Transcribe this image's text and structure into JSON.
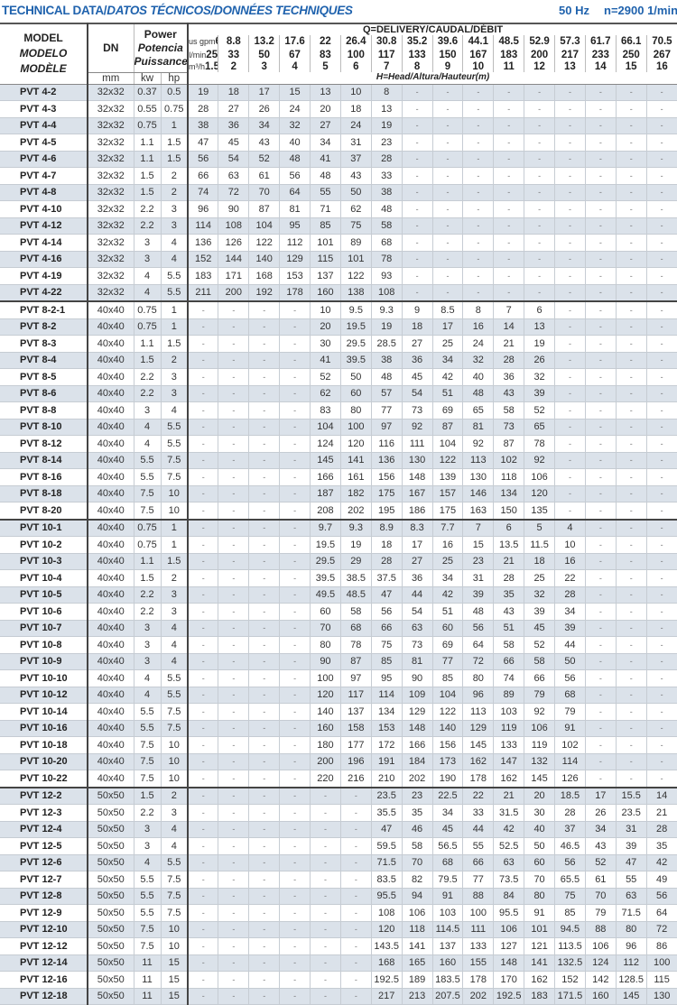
{
  "header": {
    "title_normal": "TECHNICAL DATA/",
    "title_italic": "DATOS TÉCNICOS/DONNÉES TECHNIQUES",
    "frequency": "50 Hz",
    "speed": "n=2900 1/min"
  },
  "columns": {
    "model": [
      "MODEL",
      "MODELO",
      "MODÈLE"
    ],
    "dn": "DN",
    "dn_unit": "mm",
    "power": [
      "Power",
      "Potencia",
      "Puissance"
    ],
    "kw": "kw",
    "hp": "hp",
    "delivery_label": "Q=DELIVERY/CAUDAL/DÉBIT",
    "head_label": "H=Head/Altura/Hauteur(m)",
    "unit_gpm": "us gpm",
    "unit_lmin": "l/min",
    "unit_m3h": "m³/h",
    "gpm": [
      "6.6",
      "8.8",
      "13.2",
      "17.6",
      "22",
      "26.4",
      "30.8",
      "35.2",
      "39.6",
      "44.1",
      "48.5",
      "52.9",
      "57.3",
      "61.7",
      "66.1",
      "70.5"
    ],
    "lmin": [
      "25",
      "33",
      "50",
      "67",
      "83",
      "100",
      "117",
      "133",
      "150",
      "167",
      "183",
      "200",
      "217",
      "233",
      "250",
      "267"
    ],
    "m3h": [
      "1.5",
      "2",
      "3",
      "4",
      "5",
      "6",
      "7",
      "8",
      "9",
      "10",
      "11",
      "12",
      "13",
      "14",
      "15",
      "16"
    ]
  },
  "rows": [
    {
      "model": "PVT 4-2",
      "dn": "32x32",
      "kw": "0.37",
      "hp": "0.5",
      "h": [
        "19",
        "18",
        "17",
        "15",
        "13",
        "10",
        "8",
        "-",
        "-",
        "-",
        "-",
        "-",
        "-",
        "-",
        "-",
        "-"
      ]
    },
    {
      "model": "PVT 4-3",
      "dn": "32x32",
      "kw": "0.55",
      "hp": "0.75",
      "h": [
        "28",
        "27",
        "26",
        "24",
        "20",
        "18",
        "13",
        "-",
        "-",
        "-",
        "-",
        "-",
        "-",
        "-",
        "-",
        "-"
      ]
    },
    {
      "model": "PVT 4-4",
      "dn": "32x32",
      "kw": "0.75",
      "hp": "1",
      "h": [
        "38",
        "36",
        "34",
        "32",
        "27",
        "24",
        "19",
        "-",
        "-",
        "-",
        "-",
        "-",
        "-",
        "-",
        "-",
        "-"
      ]
    },
    {
      "model": "PVT 4-5",
      "dn": "32x32",
      "kw": "1.1",
      "hp": "1.5",
      "h": [
        "47",
        "45",
        "43",
        "40",
        "34",
        "31",
        "23",
        "-",
        "-",
        "-",
        "-",
        "-",
        "-",
        "-",
        "-",
        "-"
      ]
    },
    {
      "model": "PVT 4-6",
      "dn": "32x32",
      "kw": "1.1",
      "hp": "1.5",
      "h": [
        "56",
        "54",
        "52",
        "48",
        "41",
        "37",
        "28",
        "-",
        "-",
        "-",
        "-",
        "-",
        "-",
        "-",
        "-",
        "-"
      ]
    },
    {
      "model": "PVT 4-7",
      "dn": "32x32",
      "kw": "1.5",
      "hp": "2",
      "h": [
        "66",
        "63",
        "61",
        "56",
        "48",
        "43",
        "33",
        "-",
        "-",
        "-",
        "-",
        "-",
        "-",
        "-",
        "-",
        "-"
      ]
    },
    {
      "model": "PVT 4-8",
      "dn": "32x32",
      "kw": "1.5",
      "hp": "2",
      "h": [
        "74",
        "72",
        "70",
        "64",
        "55",
        "50",
        "38",
        "-",
        "-",
        "-",
        "-",
        "-",
        "-",
        "-",
        "-",
        "-"
      ]
    },
    {
      "model": "PVT 4-10",
      "dn": "32x32",
      "kw": "2.2",
      "hp": "3",
      "h": [
        "96",
        "90",
        "87",
        "81",
        "71",
        "62",
        "48",
        "-",
        "-",
        "-",
        "-",
        "-",
        "-",
        "-",
        "-",
        "-"
      ]
    },
    {
      "model": "PVT 4-12",
      "dn": "32x32",
      "kw": "2.2",
      "hp": "3",
      "h": [
        "114",
        "108",
        "104",
        "95",
        "85",
        "75",
        "58",
        "-",
        "-",
        "-",
        "-",
        "-",
        "-",
        "-",
        "-",
        "-"
      ]
    },
    {
      "model": "PVT 4-14",
      "dn": "32x32",
      "kw": "3",
      "hp": "4",
      "h": [
        "136",
        "126",
        "122",
        "112",
        "101",
        "89",
        "68",
        "-",
        "-",
        "-",
        "-",
        "-",
        "-",
        "-",
        "-",
        "-"
      ]
    },
    {
      "model": "PVT 4-16",
      "dn": "32x32",
      "kw": "3",
      "hp": "4",
      "h": [
        "152",
        "144",
        "140",
        "129",
        "115",
        "101",
        "78",
        "-",
        "-",
        "-",
        "-",
        "-",
        "-",
        "-",
        "-",
        "-"
      ]
    },
    {
      "model": "PVT 4-19",
      "dn": "32x32",
      "kw": "4",
      "hp": "5.5",
      "h": [
        "183",
        "171",
        "168",
        "153",
        "137",
        "122",
        "93",
        "-",
        "-",
        "-",
        "-",
        "-",
        "-",
        "-",
        "-",
        "-"
      ]
    },
    {
      "model": "PVT 4-22",
      "dn": "32x32",
      "kw": "4",
      "hp": "5.5",
      "h": [
        "211",
        "200",
        "192",
        "178",
        "160",
        "138",
        "108",
        "-",
        "-",
        "-",
        "-",
        "-",
        "-",
        "-",
        "-",
        "-"
      ]
    },
    {
      "model": "PVT 8-2-1",
      "dn": "40x40",
      "kw": "0.75",
      "hp": "1",
      "h": [
        "-",
        "-",
        "-",
        "-",
        "10",
        "9.5",
        "9.3",
        "9",
        "8.5",
        "8",
        "7",
        "6",
        "-",
        "-",
        "-",
        "-"
      ]
    },
    {
      "model": "PVT 8-2",
      "dn": "40x40",
      "kw": "0.75",
      "hp": "1",
      "h": [
        "-",
        "-",
        "-",
        "-",
        "20",
        "19.5",
        "19",
        "18",
        "17",
        "16",
        "14",
        "13",
        "-",
        "-",
        "-",
        "-"
      ]
    },
    {
      "model": "PVT 8-3",
      "dn": "40x40",
      "kw": "1.1",
      "hp": "1.5",
      "h": [
        "-",
        "-",
        "-",
        "-",
        "30",
        "29.5",
        "28.5",
        "27",
        "25",
        "24",
        "21",
        "19",
        "-",
        "-",
        "-",
        "-"
      ]
    },
    {
      "model": "PVT 8-4",
      "dn": "40x40",
      "kw": "1.5",
      "hp": "2",
      "h": [
        "-",
        "-",
        "-",
        "-",
        "41",
        "39.5",
        "38",
        "36",
        "34",
        "32",
        "28",
        "26",
        "-",
        "-",
        "-",
        "-"
      ]
    },
    {
      "model": "PVT 8-5",
      "dn": "40x40",
      "kw": "2.2",
      "hp": "3",
      "h": [
        "-",
        "-",
        "-",
        "-",
        "52",
        "50",
        "48",
        "45",
        "42",
        "40",
        "36",
        "32",
        "-",
        "-",
        "-",
        "-"
      ]
    },
    {
      "model": "PVT 8-6",
      "dn": "40x40",
      "kw": "2.2",
      "hp": "3",
      "h": [
        "-",
        "-",
        "-",
        "-",
        "62",
        "60",
        "57",
        "54",
        "51",
        "48",
        "43",
        "39",
        "-",
        "-",
        "-",
        "-"
      ]
    },
    {
      "model": "PVT 8-8",
      "dn": "40x40",
      "kw": "3",
      "hp": "4",
      "h": [
        "-",
        "-",
        "-",
        "-",
        "83",
        "80",
        "77",
        "73",
        "69",
        "65",
        "58",
        "52",
        "-",
        "-",
        "-",
        "-"
      ]
    },
    {
      "model": "PVT 8-10",
      "dn": "40x40",
      "kw": "4",
      "hp": "5.5",
      "h": [
        "-",
        "-",
        "-",
        "-",
        "104",
        "100",
        "97",
        "92",
        "87",
        "81",
        "73",
        "65",
        "-",
        "-",
        "-",
        "-"
      ]
    },
    {
      "model": "PVT 8-12",
      "dn": "40x40",
      "kw": "4",
      "hp": "5.5",
      "h": [
        "-",
        "-",
        "-",
        "-",
        "124",
        "120",
        "116",
        "111",
        "104",
        "92",
        "87",
        "78",
        "-",
        "-",
        "-",
        "-"
      ]
    },
    {
      "model": "PVT 8-14",
      "dn": "40x40",
      "kw": "5.5",
      "hp": "7.5",
      "h": [
        "-",
        "-",
        "-",
        "-",
        "145",
        "141",
        "136",
        "130",
        "122",
        "113",
        "102",
        "92",
        "-",
        "-",
        "-",
        "-"
      ]
    },
    {
      "model": "PVT 8-16",
      "dn": "40x40",
      "kw": "5.5",
      "hp": "7.5",
      "h": [
        "-",
        "-",
        "-",
        "-",
        "166",
        "161",
        "156",
        "148",
        "139",
        "130",
        "118",
        "106",
        "-",
        "-",
        "-",
        "-"
      ]
    },
    {
      "model": "PVT 8-18",
      "dn": "40x40",
      "kw": "7.5",
      "hp": "10",
      "h": [
        "-",
        "-",
        "-",
        "-",
        "187",
        "182",
        "175",
        "167",
        "157",
        "146",
        "134",
        "120",
        "-",
        "-",
        "-",
        "-"
      ]
    },
    {
      "model": "PVT 8-20",
      "dn": "40x40",
      "kw": "7.5",
      "hp": "10",
      "h": [
        "-",
        "-",
        "-",
        "-",
        "208",
        "202",
        "195",
        "186",
        "175",
        "163",
        "150",
        "135",
        "-",
        "-",
        "-",
        "-"
      ]
    },
    {
      "model": "PVT 10-1",
      "dn": "40x40",
      "kw": "0.75",
      "hp": "1",
      "h": [
        "-",
        "-",
        "-",
        "-",
        "9.7",
        "9.3",
        "8.9",
        "8.3",
        "7.7",
        "7",
        "6",
        "5",
        "4",
        "-",
        "-",
        "-"
      ]
    },
    {
      "model": "PVT 10-2",
      "dn": "40x40",
      "kw": "0.75",
      "hp": "1",
      "h": [
        "-",
        "-",
        "-",
        "-",
        "19.5",
        "19",
        "18",
        "17",
        "16",
        "15",
        "13.5",
        "11.5",
        "10",
        "-",
        "-",
        "-"
      ]
    },
    {
      "model": "PVT 10-3",
      "dn": "40x40",
      "kw": "1.1",
      "hp": "1.5",
      "h": [
        "-",
        "-",
        "-",
        "-",
        "29.5",
        "29",
        "28",
        "27",
        "25",
        "23",
        "21",
        "18",
        "16",
        "-",
        "-",
        "-"
      ]
    },
    {
      "model": "PVT 10-4",
      "dn": "40x40",
      "kw": "1.5",
      "hp": "2",
      "h": [
        "-",
        "-",
        "-",
        "-",
        "39.5",
        "38.5",
        "37.5",
        "36",
        "34",
        "31",
        "28",
        "25",
        "22",
        "-",
        "-",
        "-"
      ]
    },
    {
      "model": "PVT 10-5",
      "dn": "40x40",
      "kw": "2.2",
      "hp": "3",
      "h": [
        "-",
        "-",
        "-",
        "-",
        "49.5",
        "48.5",
        "47",
        "44",
        "42",
        "39",
        "35",
        "32",
        "28",
        "-",
        "-",
        "-"
      ]
    },
    {
      "model": "PVT 10-6",
      "dn": "40x40",
      "kw": "2.2",
      "hp": "3",
      "h": [
        "-",
        "-",
        "-",
        "-",
        "60",
        "58",
        "56",
        "54",
        "51",
        "48",
        "43",
        "39",
        "34",
        "-",
        "-",
        "-"
      ]
    },
    {
      "model": "PVT 10-7",
      "dn": "40x40",
      "kw": "3",
      "hp": "4",
      "h": [
        "-",
        "-",
        "-",
        "-",
        "70",
        "68",
        "66",
        "63",
        "60",
        "56",
        "51",
        "45",
        "39",
        "-",
        "-",
        "-"
      ]
    },
    {
      "model": "PVT 10-8",
      "dn": "40x40",
      "kw": "3",
      "hp": "4",
      "h": [
        "-",
        "-",
        "-",
        "-",
        "80",
        "78",
        "75",
        "73",
        "69",
        "64",
        "58",
        "52",
        "44",
        "-",
        "-",
        "-"
      ]
    },
    {
      "model": "PVT 10-9",
      "dn": "40x40",
      "kw": "3",
      "hp": "4",
      "h": [
        "-",
        "-",
        "-",
        "-",
        "90",
        "87",
        "85",
        "81",
        "77",
        "72",
        "66",
        "58",
        "50",
        "-",
        "-",
        "-"
      ]
    },
    {
      "model": "PVT 10-10",
      "dn": "40x40",
      "kw": "4",
      "hp": "5.5",
      "h": [
        "-",
        "-",
        "-",
        "-",
        "100",
        "97",
        "95",
        "90",
        "85",
        "80",
        "74",
        "66",
        "56",
        "-",
        "-",
        "-"
      ]
    },
    {
      "model": "PVT 10-12",
      "dn": "40x40",
      "kw": "4",
      "hp": "5.5",
      "h": [
        "-",
        "-",
        "-",
        "-",
        "120",
        "117",
        "114",
        "109",
        "104",
        "96",
        "89",
        "79",
        "68",
        "-",
        "-",
        "-"
      ]
    },
    {
      "model": "PVT 10-14",
      "dn": "40x40",
      "kw": "5.5",
      "hp": "7.5",
      "h": [
        "-",
        "-",
        "-",
        "-",
        "140",
        "137",
        "134",
        "129",
        "122",
        "113",
        "103",
        "92",
        "79",
        "-",
        "-",
        "-"
      ]
    },
    {
      "model": "PVT 10-16",
      "dn": "40x40",
      "kw": "5.5",
      "hp": "7.5",
      "h": [
        "-",
        "-",
        "-",
        "-",
        "160",
        "158",
        "153",
        "148",
        "140",
        "129",
        "119",
        "106",
        "91",
        "-",
        "-",
        "-"
      ]
    },
    {
      "model": "PVT 10-18",
      "dn": "40x40",
      "kw": "7.5",
      "hp": "10",
      "h": [
        "-",
        "-",
        "-",
        "-",
        "180",
        "177",
        "172",
        "166",
        "156",
        "145",
        "133",
        "119",
        "102",
        "-",
        "-",
        "-"
      ]
    },
    {
      "model": "PVT 10-20",
      "dn": "40x40",
      "kw": "7.5",
      "hp": "10",
      "h": [
        "-",
        "-",
        "-",
        "-",
        "200",
        "196",
        "191",
        "184",
        "173",
        "162",
        "147",
        "132",
        "114",
        "-",
        "-",
        "-"
      ]
    },
    {
      "model": "PVT 10-22",
      "dn": "40x40",
      "kw": "7.5",
      "hp": "10",
      "h": [
        "-",
        "-",
        "-",
        "-",
        "220",
        "216",
        "210",
        "202",
        "190",
        "178",
        "162",
        "145",
        "126",
        "-",
        "-",
        "-"
      ]
    },
    {
      "model": "PVT 12-2",
      "dn": "50x50",
      "kw": "1.5",
      "hp": "2",
      "h": [
        "-",
        "-",
        "-",
        "-",
        "-",
        "-",
        "23.5",
        "23",
        "22.5",
        "22",
        "21",
        "20",
        "18.5",
        "17",
        "15.5",
        "14"
      ]
    },
    {
      "model": "PVT 12-3",
      "dn": "50x50",
      "kw": "2.2",
      "hp": "3",
      "h": [
        "-",
        "-",
        "-",
        "-",
        "-",
        "-",
        "35.5",
        "35",
        "34",
        "33",
        "31.5",
        "30",
        "28",
        "26",
        "23.5",
        "21"
      ]
    },
    {
      "model": "PVT 12-4",
      "dn": "50x50",
      "kw": "3",
      "hp": "4",
      "h": [
        "-",
        "-",
        "-",
        "-",
        "-",
        "-",
        "47",
        "46",
        "45",
        "44",
        "42",
        "40",
        "37",
        "34",
        "31",
        "28"
      ]
    },
    {
      "model": "PVT 12-5",
      "dn": "50x50",
      "kw": "3",
      "hp": "4",
      "h": [
        "-",
        "-",
        "-",
        "-",
        "-",
        "-",
        "59.5",
        "58",
        "56.5",
        "55",
        "52.5",
        "50",
        "46.5",
        "43",
        "39",
        "35"
      ]
    },
    {
      "model": "PVT 12-6",
      "dn": "50x50",
      "kw": "4",
      "hp": "5.5",
      "h": [
        "-",
        "-",
        "-",
        "-",
        "-",
        "-",
        "71.5",
        "70",
        "68",
        "66",
        "63",
        "60",
        "56",
        "52",
        "47",
        "42"
      ]
    },
    {
      "model": "PVT 12-7",
      "dn": "50x50",
      "kw": "5.5",
      "hp": "7.5",
      "h": [
        "-",
        "-",
        "-",
        "-",
        "-",
        "-",
        "83.5",
        "82",
        "79.5",
        "77",
        "73.5",
        "70",
        "65.5",
        "61",
        "55",
        "49"
      ]
    },
    {
      "model": "PVT 12-8",
      "dn": "50x50",
      "kw": "5.5",
      "hp": "7.5",
      "h": [
        "-",
        "-",
        "-",
        "-",
        "-",
        "-",
        "95.5",
        "94",
        "91",
        "88",
        "84",
        "80",
        "75",
        "70",
        "63",
        "56"
      ]
    },
    {
      "model": "PVT 12-9",
      "dn": "50x50",
      "kw": "5.5",
      "hp": "7.5",
      "h": [
        "-",
        "-",
        "-",
        "-",
        "-",
        "-",
        "108",
        "106",
        "103",
        "100",
        "95.5",
        "91",
        "85",
        "79",
        "71.5",
        "64"
      ]
    },
    {
      "model": "PVT 12-10",
      "dn": "50x50",
      "kw": "7.5",
      "hp": "10",
      "h": [
        "-",
        "-",
        "-",
        "-",
        "-",
        "-",
        "120",
        "118",
        "114.5",
        "111",
        "106",
        "101",
        "94.5",
        "88",
        "80",
        "72"
      ]
    },
    {
      "model": "PVT 12-12",
      "dn": "50x50",
      "kw": "7.5",
      "hp": "10",
      "h": [
        "-",
        "-",
        "-",
        "-",
        "-",
        "-",
        "143.5",
        "141",
        "137",
        "133",
        "127",
        "121",
        "113.5",
        "106",
        "96",
        "86"
      ]
    },
    {
      "model": "PVT 12-14",
      "dn": "50x50",
      "kw": "11",
      "hp": "15",
      "h": [
        "-",
        "-",
        "-",
        "-",
        "-",
        "-",
        "168",
        "165",
        "160",
        "155",
        "148",
        "141",
        "132.5",
        "124",
        "112",
        "100"
      ]
    },
    {
      "model": "PVT 12-16",
      "dn": "50x50",
      "kw": "11",
      "hp": "15",
      "h": [
        "-",
        "-",
        "-",
        "-",
        "-",
        "-",
        "192.5",
        "189",
        "183.5",
        "178",
        "170",
        "162",
        "152",
        "142",
        "128.5",
        "115"
      ]
    },
    {
      "model": "PVT 12-18",
      "dn": "50x50",
      "kw": "11",
      "hp": "15",
      "h": [
        "-",
        "-",
        "-",
        "-",
        "-",
        "-",
        "217",
        "213",
        "207.5",
        "202",
        "192.5",
        "183",
        "171.5",
        "160",
        "145",
        "130"
      ]
    }
  ]
}
